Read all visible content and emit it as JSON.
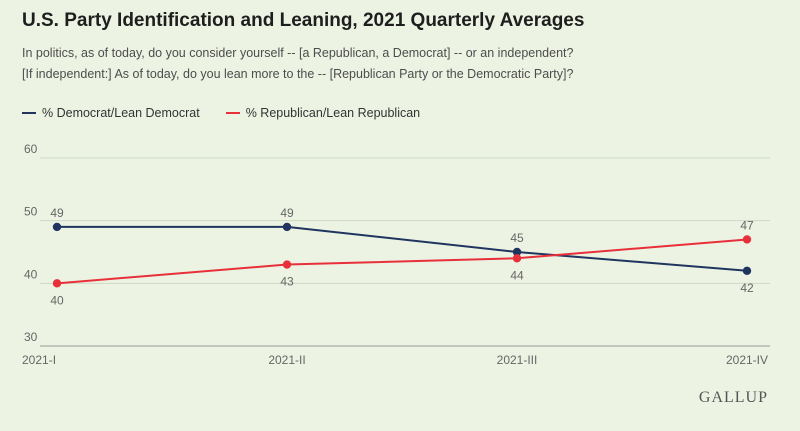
{
  "header": {
    "title": "U.S. Party Identification and Leaning, 2021 Quarterly Averages",
    "subtitle_line1": "In politics, as of today, do you consider yourself -- [a Republican, a Democrat] -- or an independent?",
    "subtitle_line2": "[If independent:] As of today, do you lean more to the -- [Republican Party or the Democratic Party]?"
  },
  "legend": {
    "items": [
      {
        "label": "% Democrat/Lean Democrat",
        "color": "#1f3560"
      },
      {
        "label": "% Republican/Lean Republican",
        "color": "#e8303a"
      }
    ]
  },
  "brand": "GALLUP",
  "chart_data": {
    "type": "line",
    "categories": [
      "2021-I",
      "2021-II",
      "2021-III",
      "2021-IV"
    ],
    "series": [
      {
        "name": "% Democrat/Lean Democrat",
        "values": [
          49,
          49,
          45,
          42
        ],
        "color": "#1f3560"
      },
      {
        "name": "% Republican/Lean Republican",
        "values": [
          40,
          43,
          44,
          47
        ],
        "color": "#e8303a"
      }
    ],
    "yticks": [
      30,
      40,
      50,
      60
    ],
    "ylim": [
      30,
      60
    ],
    "grid": true,
    "legend_position": "top-left"
  }
}
